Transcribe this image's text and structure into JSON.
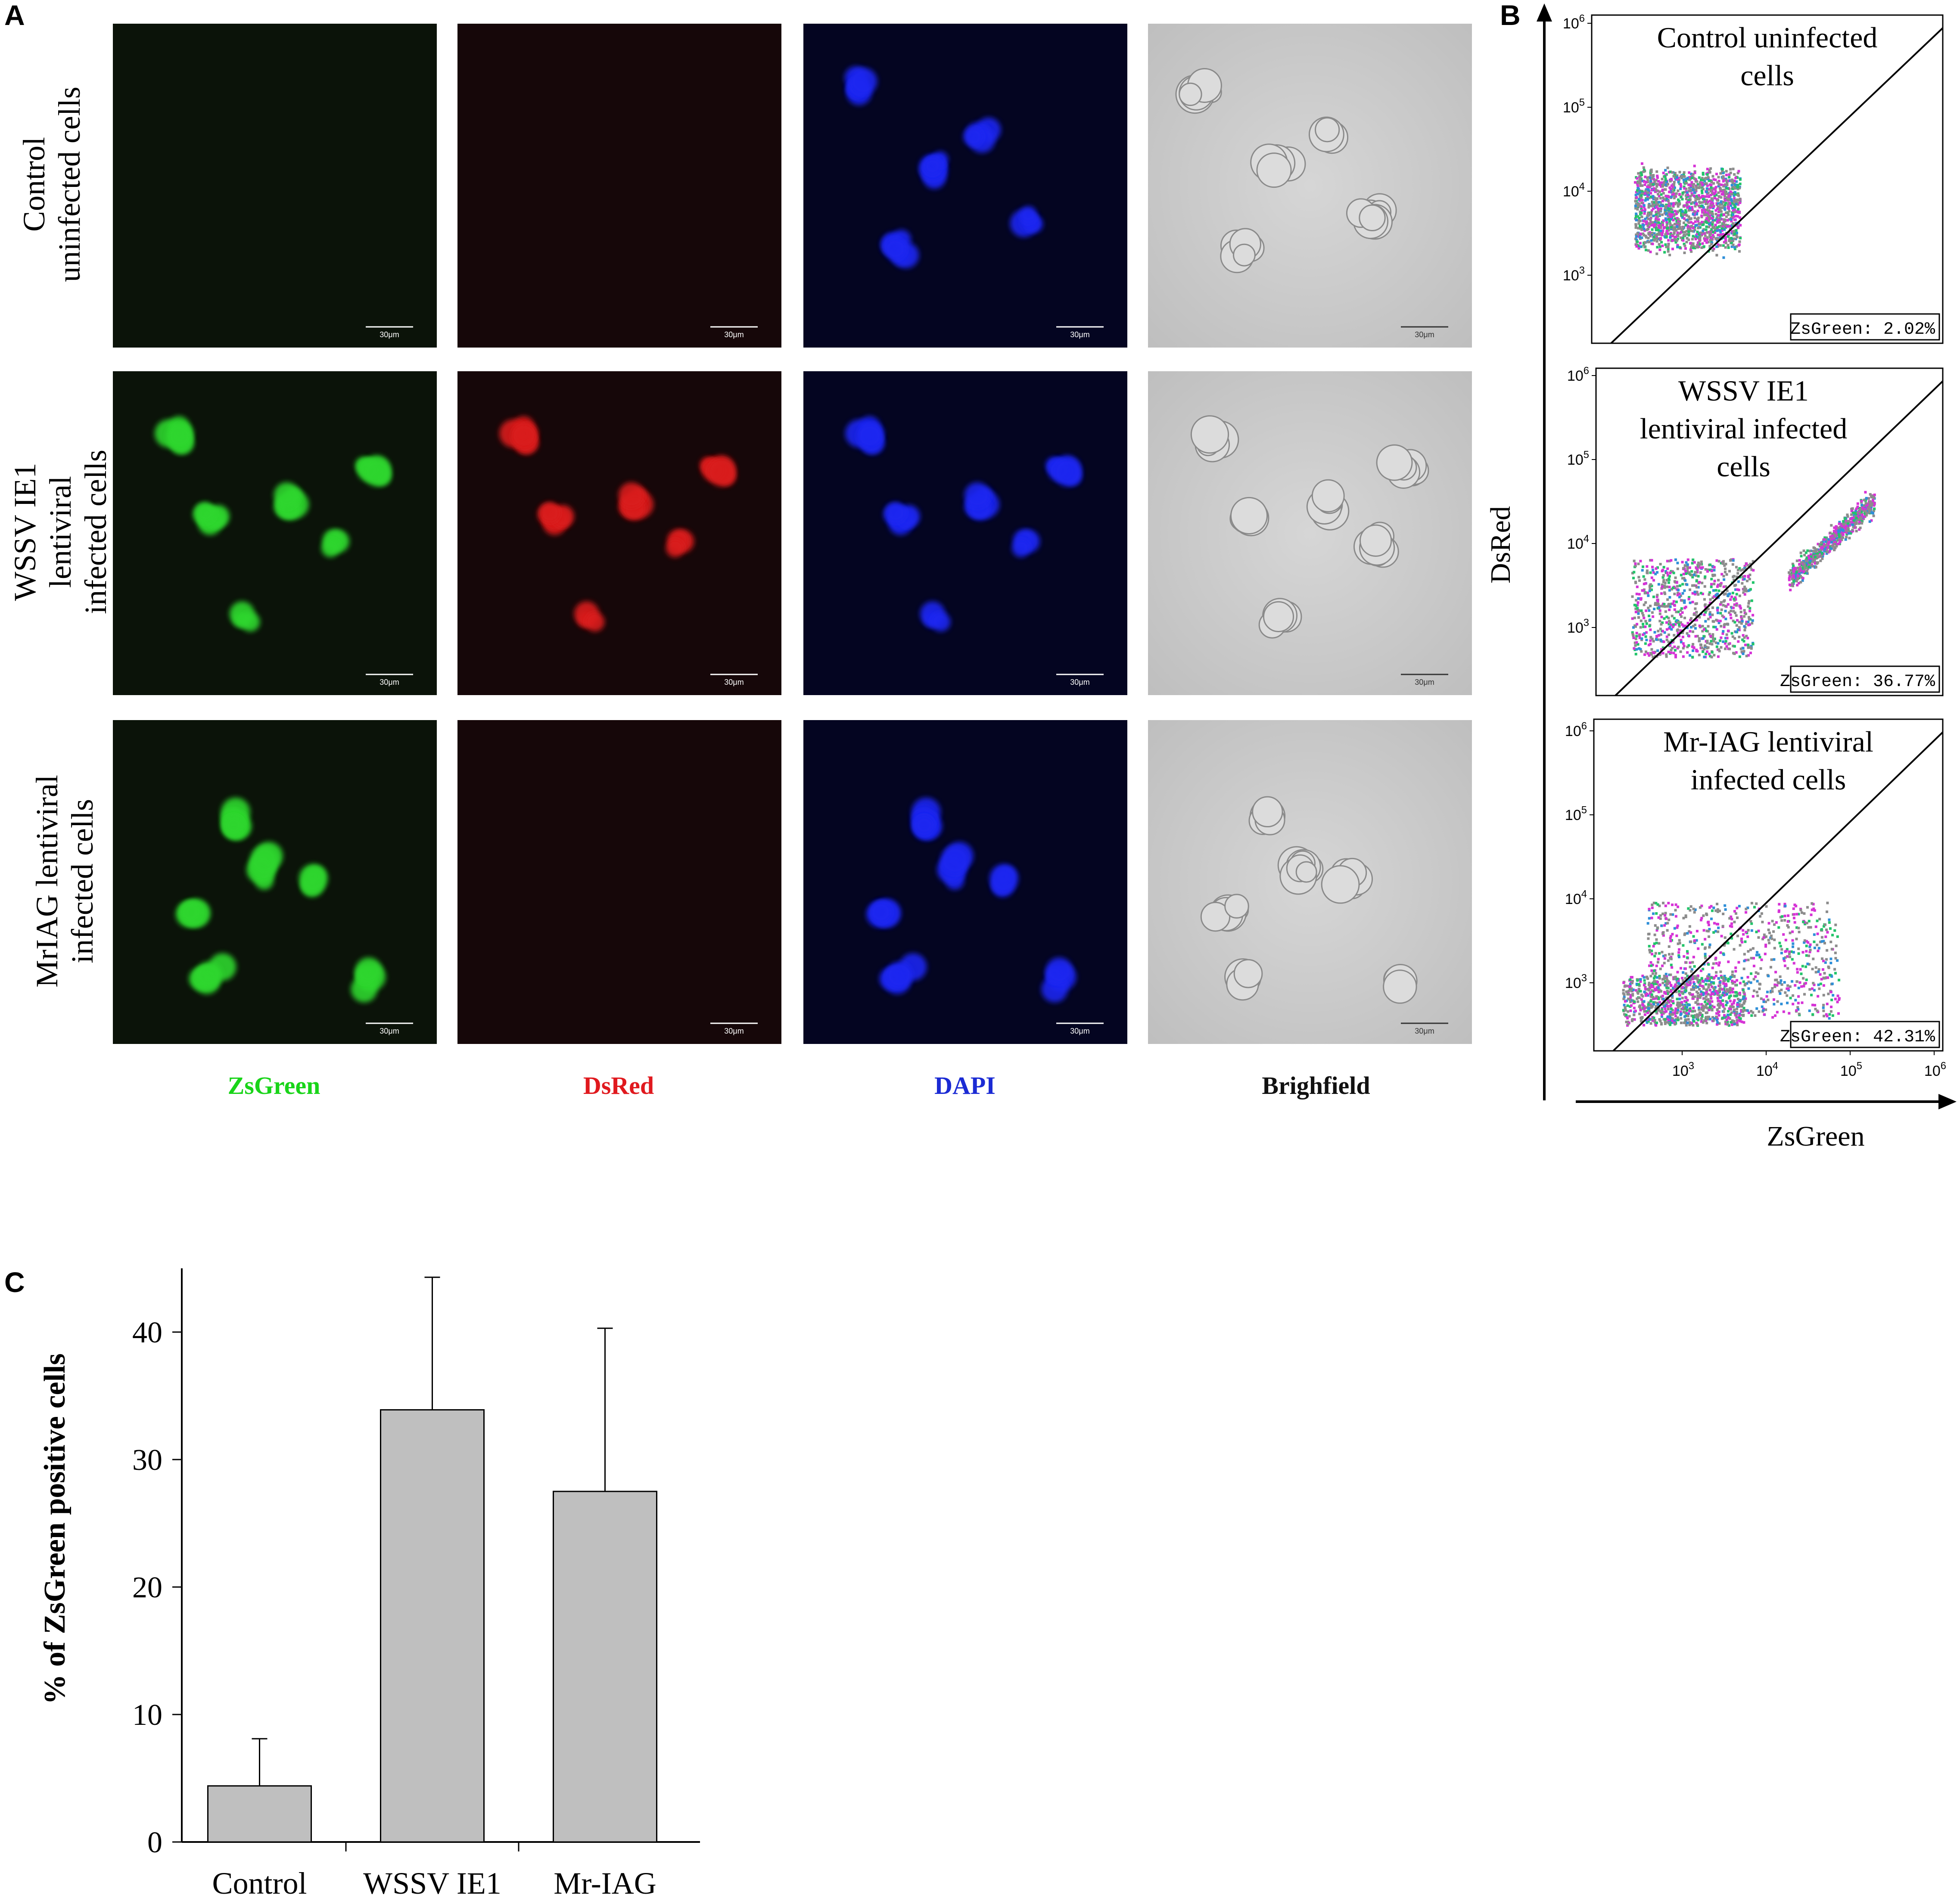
{
  "panel_a": {
    "letter": "A",
    "row_labels": [
      [
        "Control",
        "uninfected cells"
      ],
      [
        "WSSV IE1",
        "lentiviral",
        "infected cells"
      ],
      [
        "MrIAG lentiviral",
        "infected cells"
      ]
    ],
    "channel_labels": [
      "ZsGreen",
      "DsRed",
      "DAPI",
      "Brighfield"
    ],
    "channel_colors": [
      "#19d419",
      "#e0191e",
      "#1b2bd4",
      "#111111"
    ],
    "scale_bar_label": "30μm",
    "panel_colors": {
      "zsgreen_bg": "#0b1309",
      "dsred_bg": "#160709",
      "dapi_bg": "#040521",
      "bright_bg": "#cfcfcf",
      "green": "#2ed62e",
      "red": "#d91f1f",
      "blue": "#1e28f0"
    }
  },
  "panel_b": {
    "letter": "B",
    "y_axis_label": "DsRed",
    "x_axis_label": "ZsGreen",
    "y_tick_labels": [
      "10^3",
      "10^4",
      "10^5",
      "10^6"
    ],
    "x_tick_labels": [
      "10^3",
      "10^4",
      "10^5",
      "10^6"
    ],
    "plots": [
      {
        "title_lines": [
          "Control uninfected",
          "cells"
        ],
        "stat": "ZsGreen: 2.02%"
      },
      {
        "title_lines": [
          "WSSV IE1",
          "lentiviral infected",
          "cells"
        ],
        "stat": "ZsGreen: 36.77%"
      },
      {
        "title_lines": [
          "Mr-IAG lentiviral",
          "infected cells"
        ],
        "stat": "ZsGreen: 42.31%"
      }
    ]
  },
  "panel_c": {
    "letter": "C"
  },
  "chart_data": {
    "type": "bar",
    "categories": [
      "Control",
      "WSSV IE1",
      "Mr-IAG"
    ],
    "values": [
      4.4,
      33.9,
      27.5
    ],
    "error_upper": [
      8.1,
      44.3,
      40.3
    ],
    "ylabel": "% of ZsGreen positive cells",
    "xlabel": "",
    "ylim": [
      0,
      45
    ],
    "yticks": [
      0,
      10,
      20,
      30,
      40
    ],
    "bar_color": "#bfbfbf",
    "grid": false
  }
}
